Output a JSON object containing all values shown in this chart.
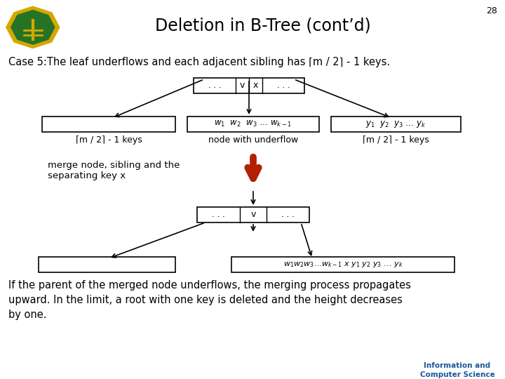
{
  "title": "Deletion in B-Tree (cont’d)",
  "slide_num": "28",
  "header_bg": "#2e8b2e",
  "header_text_color": "#000000",
  "body_bg": "#ffffff",
  "case_text": "Case 5:The leaf underflows and each adjacent sibling has ⌈m / 2⌉ - 1 keys.",
  "merge_text1": "merge node, sibling and the",
  "merge_text2": "separating key x",
  "bottom_text": "If the parent of the merged node underflows, the merging process propagates\nupward. In the limit, a root with one key is deleted and the height decreases\nby one.",
  "logo_text": "Information and\nComputer Science",
  "left_caption": "⌈m / 2⌉ - 1 keys",
  "mid_caption": "node with underflow",
  "right_caption": "⌈m / 2⌉ - 1 keys"
}
